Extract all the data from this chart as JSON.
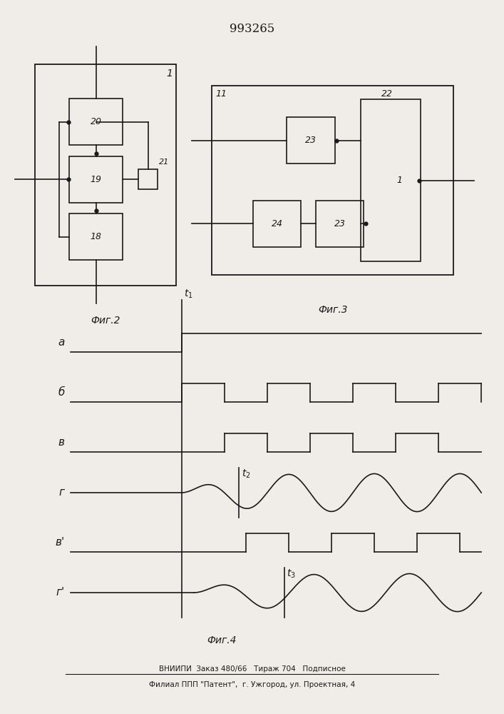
{
  "title": "993265",
  "title_fontsize": 12,
  "fig2_label": "Фиг.2",
  "fig3_label": "Фиг.3",
  "fig4_label": "Фиг.4",
  "footer1": "ВНИИПИ  Заказ 480/66   Тираж 704   Подписное",
  "footer2": "Филиал ППП \"Патент\",  г. Ужгород, ул. Проектная, 4",
  "bg_color": "#f0ede8",
  "line_color": "#1a1a1a",
  "signal_labels_a": [
    "а",
    "б",
    "в",
    "г",
    "в'",
    "г'"
  ]
}
